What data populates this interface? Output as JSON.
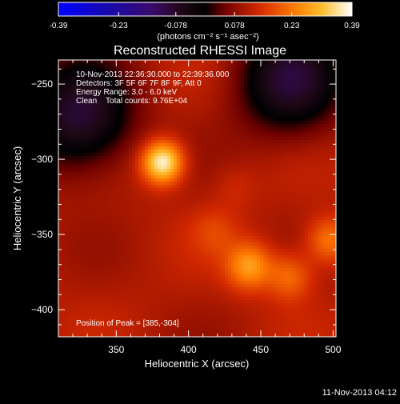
{
  "colorbar": {
    "tick_labels": [
      "-0.39",
      "-0.23",
      "-0.078",
      "0.078",
      "0.23",
      "0.39"
    ],
    "unit_label": "(photons cm⁻² s⁻¹ asec⁻²)",
    "range": [
      -0.39,
      0.39
    ]
  },
  "chart_data": {
    "type": "heatmap",
    "title": "Reconstructed RHESSI Image",
    "xlabel": "Heliocentric X (arcsec)",
    "ylabel": "Heliocentric Y (arcsec)",
    "xlim": [
      310,
      502
    ],
    "ylim": [
      -418,
      -234
    ],
    "x_ticks": [
      350,
      400,
      450,
      500
    ],
    "y_ticks": [
      -250,
      -300,
      -350,
      -400
    ],
    "annotations": [
      "10-Nov-2013 22:36:30.000 to 22:39:36.000",
      "Detectors: 3F 5F 6F 7F 8F 9F, Att 0",
      "Energy Range: 3.0 - 6.0 keV",
      "Clean    Total counts: 9.76E+04"
    ],
    "peak_label": "Position of Peak = [385,-304]",
    "peak": [
      385,
      -304
    ],
    "sources": [
      {
        "x": 382,
        "y": -302,
        "flux": 0.39
      },
      {
        "x": 442,
        "y": -371,
        "flux": 0.27
      },
      {
        "x": 470,
        "y": -378,
        "flux": 0.22
      },
      {
        "x": 497,
        "y": -354,
        "flux": 0.24
      },
      {
        "x": 418,
        "y": -348,
        "flux": 0.16
      },
      {
        "x": 432,
        "y": -318,
        "flux": 0.14
      }
    ],
    "negative_regions": [
      {
        "x": 325,
        "y": -272,
        "flux": -0.09
      },
      {
        "x": 470,
        "y": -248,
        "flux": -0.08
      }
    ],
    "background_level": 0.11
  },
  "footer": {
    "timestamp": "11-Nov-2013 04:12"
  }
}
